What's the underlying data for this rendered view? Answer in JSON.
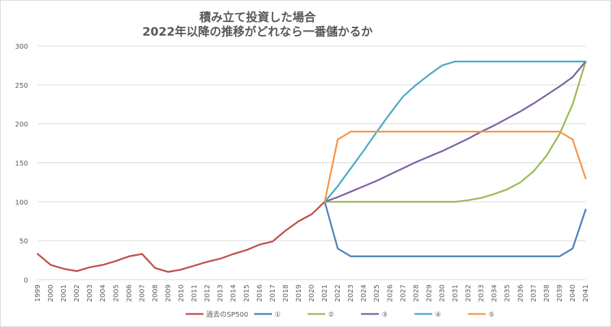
{
  "chart_data": {
    "type": "line",
    "title": [
      "積み立て投資した場合",
      "2022年以降の推移がどれなら一番儲かるか"
    ],
    "xlabel": "",
    "ylabel": "",
    "ylim": [
      0,
      300
    ],
    "yticks": [
      0,
      50,
      100,
      150,
      200,
      250,
      300
    ],
    "grid": true,
    "legend_position": "bottom",
    "x": [
      "1999",
      "2000",
      "2001",
      "2002",
      "2003",
      "2004",
      "2005",
      "2006",
      "2007",
      "2008",
      "2009",
      "2010",
      "2011",
      "2012",
      "2013",
      "2014",
      "2015",
      "2016",
      "2017",
      "2018",
      "2019",
      "2020",
      "2021",
      "2022",
      "2023",
      "2024",
      "2025",
      "2026",
      "2027",
      "2028",
      "2029",
      "2030",
      "2031",
      "2032",
      "2033",
      "2034",
      "2035",
      "2036",
      "2037",
      "2038",
      "2039",
      "2040",
      "2041"
    ],
    "series": [
      {
        "name": "過去のSP500",
        "color": "#c0504d",
        "values": [
          33,
          19,
          14,
          11,
          16,
          19,
          24,
          30,
          33,
          15,
          10,
          13,
          18,
          23,
          27,
          33,
          38,
          45,
          49,
          63,
          75,
          84,
          100,
          null,
          null,
          null,
          null,
          null,
          null,
          null,
          null,
          null,
          null,
          null,
          null,
          null,
          null,
          null,
          null,
          null,
          null,
          null,
          null
        ]
      },
      {
        "name": "①",
        "color": "#4f81bd",
        "values": [
          null,
          null,
          null,
          null,
          null,
          null,
          null,
          null,
          null,
          null,
          null,
          null,
          null,
          null,
          null,
          null,
          null,
          null,
          null,
          null,
          null,
          null,
          100,
          40,
          30,
          30,
          30,
          30,
          30,
          30,
          30,
          30,
          30,
          30,
          30,
          30,
          30,
          30,
          30,
          30,
          30,
          40,
          90
        ]
      },
      {
        "name": "②",
        "color": "#9bbb59",
        "values": [
          null,
          null,
          null,
          null,
          null,
          null,
          null,
          null,
          null,
          null,
          null,
          null,
          null,
          null,
          null,
          null,
          null,
          null,
          null,
          null,
          null,
          null,
          100,
          100,
          100,
          100,
          100,
          100,
          100,
          100,
          100,
          100,
          100,
          102,
          105,
          110,
          116,
          125,
          139,
          159,
          187,
          225,
          280
        ]
      },
      {
        "name": "③",
        "color": "#8064a2",
        "values": [
          null,
          null,
          null,
          null,
          null,
          null,
          null,
          null,
          null,
          null,
          null,
          null,
          null,
          null,
          null,
          null,
          null,
          null,
          null,
          null,
          null,
          null,
          100,
          106,
          113,
          120,
          127,
          135,
          143,
          151,
          158,
          165,
          173,
          181,
          190,
          198,
          207,
          216,
          226,
          237,
          248,
          260,
          280
        ]
      },
      {
        "name": "④",
        "color": "#4bacc6",
        "values": [
          null,
          null,
          null,
          null,
          null,
          null,
          null,
          null,
          null,
          null,
          null,
          null,
          null,
          null,
          null,
          null,
          null,
          null,
          null,
          null,
          null,
          null,
          100,
          120,
          143,
          166,
          190,
          213,
          235,
          250,
          263,
          275,
          280,
          280,
          280,
          280,
          280,
          280,
          280,
          280,
          280,
          280,
          280
        ]
      },
      {
        "name": "⑤",
        "color": "#f79646",
        "values": [
          null,
          null,
          null,
          null,
          null,
          null,
          null,
          null,
          null,
          null,
          null,
          null,
          null,
          null,
          null,
          null,
          null,
          null,
          null,
          null,
          null,
          null,
          100,
          180,
          190,
          190,
          190,
          190,
          190,
          190,
          190,
          190,
          190,
          190,
          190,
          190,
          190,
          190,
          190,
          190,
          190,
          180,
          130
        ]
      }
    ]
  }
}
